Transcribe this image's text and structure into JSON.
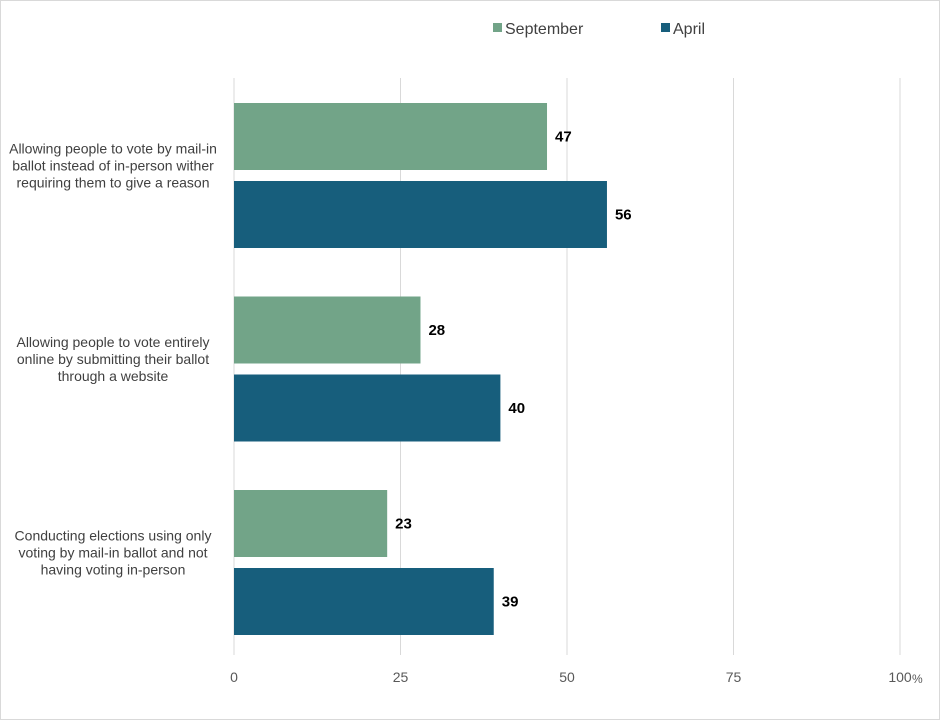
{
  "chart_data": {
    "type": "bar",
    "orientation": "horizontal",
    "categories": [
      [
        "Allowing people to vote by mail-in",
        "ballot instead of in-person wither",
        "requiring them to give a reason"
      ],
      [
        "Allowing people to vote entirely",
        "online by submitting their ballot",
        "through a website"
      ],
      [
        "Conducting elections using only",
        "voting by mail-in ballot and not",
        "having voting in-person"
      ]
    ],
    "series": [
      {
        "name": "September",
        "color": "#72a488",
        "values": [
          47,
          28,
          23
        ]
      },
      {
        "name": "April",
        "color": "#175e7c",
        "values": [
          56,
          40,
          39
        ]
      }
    ],
    "xlim": [
      0,
      100
    ],
    "ticks": [
      0,
      25,
      50,
      75,
      100
    ],
    "tick_labels": [
      "0",
      "25",
      "50",
      "75",
      "100"
    ],
    "unit": "%",
    "grid": true,
    "legend_position": "top-center",
    "title": "",
    "xlabel": "",
    "ylabel": ""
  }
}
